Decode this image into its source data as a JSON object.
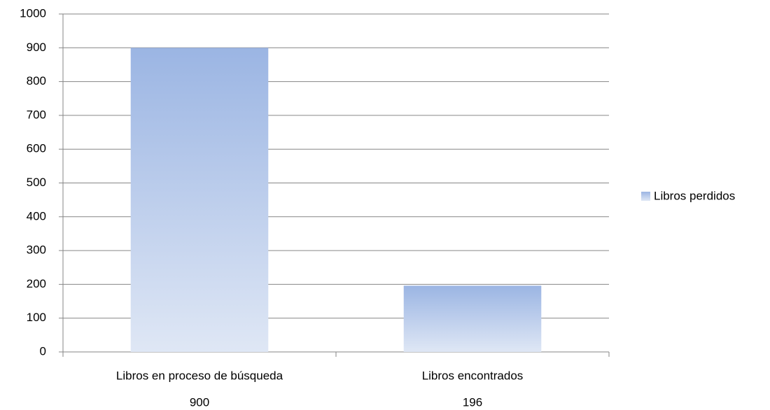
{
  "chart_data": {
    "type": "bar",
    "categories": [
      "Libros en proceso de búsqueda",
      "Libros encontrados"
    ],
    "series": [
      {
        "name": "Libros perdidos",
        "color": "#9bb5e3",
        "values": [
          900,
          196
        ]
      }
    ],
    "ylim": [
      0,
      1000
    ],
    "yticks": [
      0,
      100,
      200,
      300,
      400,
      500,
      600,
      700,
      800,
      900,
      1000
    ],
    "grid": true,
    "legend": "right"
  }
}
